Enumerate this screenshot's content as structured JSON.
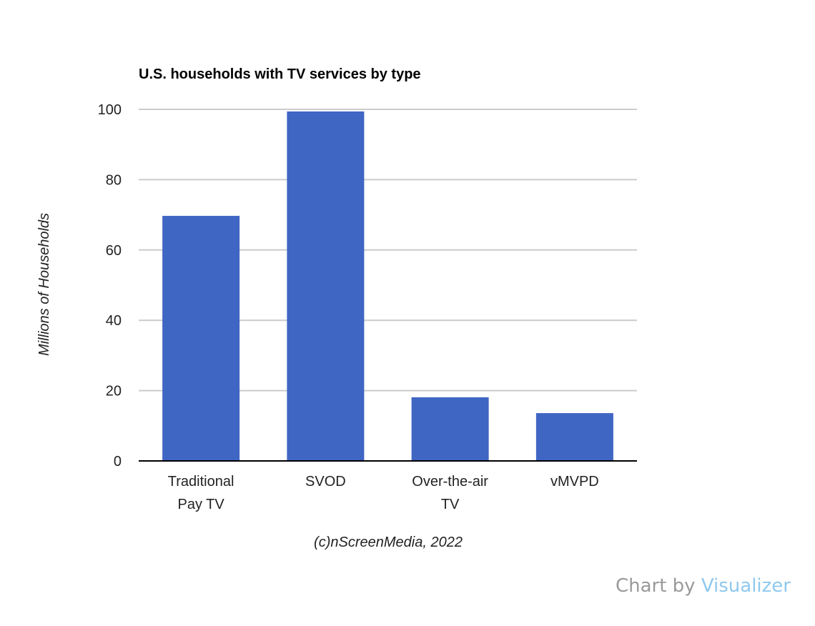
{
  "chart_data": {
    "type": "bar",
    "title": "U.S. households with TV services by type",
    "xlabel": "(c)nScreenMedia, 2022",
    "ylabel": "Millions of Households",
    "categories": [
      [
        "Traditional",
        "Pay TV"
      ],
      [
        "SVOD"
      ],
      [
        "Over-the-air",
        "TV"
      ],
      [
        "vMVPD"
      ]
    ],
    "values": [
      69.7,
      99.4,
      18.1,
      13.6
    ],
    "ylim": [
      0,
      100
    ],
    "yticks": [
      0,
      20,
      40,
      60,
      80,
      100
    ],
    "grid": true,
    "bar_color": "#4066c4"
  },
  "credit": {
    "prefix": "Chart by ",
    "link": "Visualizer"
  }
}
